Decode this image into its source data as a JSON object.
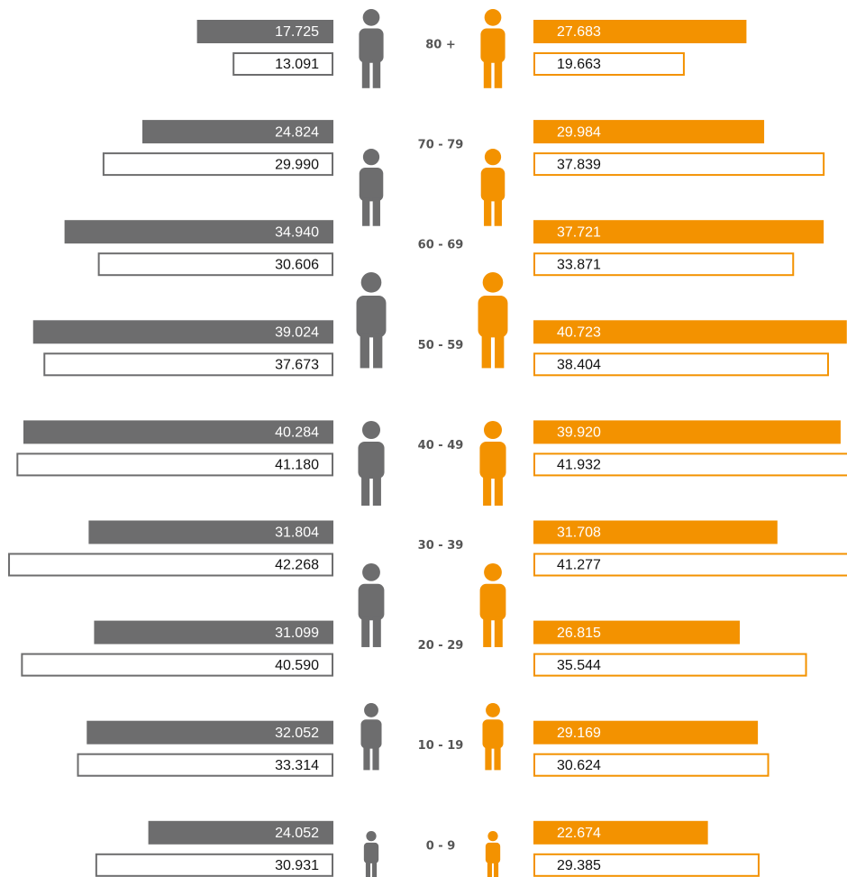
{
  "chart_data": {
    "type": "butterfly_bar",
    "categories": [
      "80 +",
      "70 - 79",
      "60 - 69",
      "50 - 59",
      "40 - 49",
      "30 - 39",
      "20 - 29",
      "10 - 19",
      "0 - 9"
    ],
    "series": [
      {
        "side": "left",
        "style": "filled",
        "color": "#6d6d6e",
        "values": [
          17.725,
          24.824,
          34.94,
          39.024,
          40.284,
          31.804,
          31.099,
          32.052,
          24.052
        ],
        "value_labels": [
          "17.725",
          "24.824",
          "34.940",
          "39.024",
          "40.284",
          "31.804",
          "31.099",
          "32.052",
          "24.052"
        ]
      },
      {
        "side": "left",
        "style": "outline",
        "color": "#6d6d6e",
        "values": [
          13.091,
          29.99,
          30.606,
          37.673,
          41.18,
          42.268,
          40.59,
          33.314,
          30.931
        ],
        "value_labels": [
          "13.091",
          "29.990",
          "30.606",
          "37.673",
          "41.180",
          "42.268",
          "40.590",
          "33.314",
          "30.931"
        ]
      },
      {
        "side": "right",
        "style": "filled",
        "color": "#f39200",
        "values": [
          27.683,
          29.984,
          37.721,
          40.723,
          39.92,
          31.708,
          26.815,
          29.169,
          22.674
        ],
        "value_labels": [
          "27.683",
          "29.984",
          "37.721",
          "40.723",
          "39.920",
          "31.708",
          "26.815",
          "29.169",
          "22.674"
        ]
      },
      {
        "side": "right",
        "style": "outline",
        "color": "#f39200",
        "values": [
          19.663,
          37.839,
          33.871,
          38.404,
          41.932,
          41.277,
          35.544,
          30.624,
          29.385
        ],
        "value_labels": [
          "19.663",
          "37.839",
          "33.871",
          "38.404",
          "41.932",
          "41.277",
          "35.544",
          "30.624",
          "29.385"
        ]
      }
    ]
  }
}
